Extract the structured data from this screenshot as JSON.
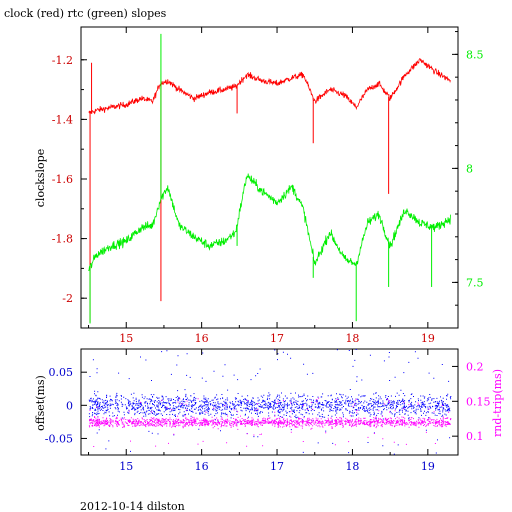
{
  "colors": {
    "background": "#ffffff",
    "axis": "#000000",
    "clock": "#ff0000",
    "rtc": "#00ee00",
    "offset": "#0000ff",
    "roundtrip": "#ff00ff",
    "top_x_ticks": "#cc0000",
    "bottom_x_ticks": "#0000cc"
  },
  "title": "clock (red) rtc (green) slopes",
  "footer": "2012-10-14 dilston",
  "chart_data": [
    {
      "type": "line",
      "title": "clock (red) rtc (green) slopes",
      "xlabel": "",
      "ylabel": "clockslope",
      "xlim": [
        14.4,
        19.4
      ],
      "ylim": [
        -2.1,
        -1.09
      ],
      "x_ticks": [
        15,
        16,
        17,
        18,
        19
      ],
      "y_ticks": [
        -2,
        -1.8,
        -1.6,
        -1.4,
        -1.2
      ],
      "y2label": "",
      "y2lim": [
        7.3,
        8.62
      ],
      "y2_ticks": [
        7.5,
        8,
        8.5
      ],
      "series": [
        {
          "color": "red",
          "axis": "left",
          "x": [
            14.5,
            14.6,
            14.8,
            15.0,
            15.2,
            15.35,
            15.45,
            15.55,
            15.7,
            15.9,
            16.1,
            16.3,
            16.45,
            16.6,
            16.8,
            17.0,
            17.2,
            17.35,
            17.5,
            17.7,
            17.9,
            18.05,
            18.2,
            18.35,
            18.5,
            18.7,
            18.9,
            19.1,
            19.3
          ],
          "y": [
            -1.38,
            -1.37,
            -1.36,
            -1.35,
            -1.33,
            -1.34,
            -1.28,
            -1.27,
            -1.3,
            -1.33,
            -1.31,
            -1.3,
            -1.29,
            -1.25,
            -1.27,
            -1.28,
            -1.26,
            -1.25,
            -1.34,
            -1.3,
            -1.32,
            -1.36,
            -1.3,
            -1.28,
            -1.33,
            -1.25,
            -1.2,
            -1.24,
            -1.27
          ],
          "spikes": [
            [
              14.52,
              -2.08
            ],
            [
              14.54,
              -1.21
            ],
            [
              15.46,
              -2.01
            ],
            [
              16.47,
              -1.38
            ],
            [
              17.48,
              -1.48
            ],
            [
              18.48,
              -1.65
            ]
          ]
        },
        {
          "color": "green",
          "axis": "right",
          "x": [
            14.5,
            14.6,
            14.8,
            15.0,
            15.2,
            15.35,
            15.45,
            15.55,
            15.7,
            15.9,
            16.1,
            16.3,
            16.45,
            16.6,
            16.8,
            17.0,
            17.2,
            17.35,
            17.5,
            17.7,
            17.9,
            18.05,
            18.2,
            18.35,
            18.5,
            18.7,
            18.9,
            19.1,
            19.3
          ],
          "y": [
            7.55,
            7.62,
            7.66,
            7.68,
            7.74,
            7.75,
            7.86,
            7.92,
            7.75,
            7.7,
            7.66,
            7.68,
            7.72,
            7.97,
            7.9,
            7.85,
            7.92,
            7.82,
            7.58,
            7.72,
            7.6,
            7.58,
            7.76,
            7.8,
            7.66,
            7.82,
            7.76,
            7.74,
            7.78
          ],
          "spikes": [
            [
              14.52,
              7.32
            ],
            [
              15.46,
              8.59
            ],
            [
              16.47,
              7.66
            ],
            [
              17.48,
              7.52
            ],
            [
              18.05,
              7.33
            ],
            [
              18.48,
              7.48
            ],
            [
              19.05,
              7.48
            ]
          ]
        }
      ]
    },
    {
      "type": "scatter",
      "ylabel": "offset(ms)",
      "y2label": "rnd-trip(ms)",
      "xlim": [
        14.4,
        19.4
      ],
      "ylim": [
        -0.075,
        0.085
      ],
      "x_ticks": [
        15,
        16,
        17,
        18,
        19
      ],
      "y_ticks": [
        -0.05,
        0,
        0.05
      ],
      "y_tick_labels": [
        "-0.05",
        "0",
        "0.05"
      ],
      "y2lim": [
        0.073,
        0.225
      ],
      "y2_ticks": [
        0.1,
        0.15,
        0.2
      ],
      "series": [
        {
          "color": "blue",
          "axis": "left",
          "x_range": [
            14.5,
            19.3
          ],
          "center": 0.0,
          "spread": 0.018
        },
        {
          "color": "magenta",
          "axis": "right",
          "x_range": [
            14.5,
            19.3
          ],
          "center": 0.12,
          "spread": 0.007
        }
      ]
    }
  ]
}
